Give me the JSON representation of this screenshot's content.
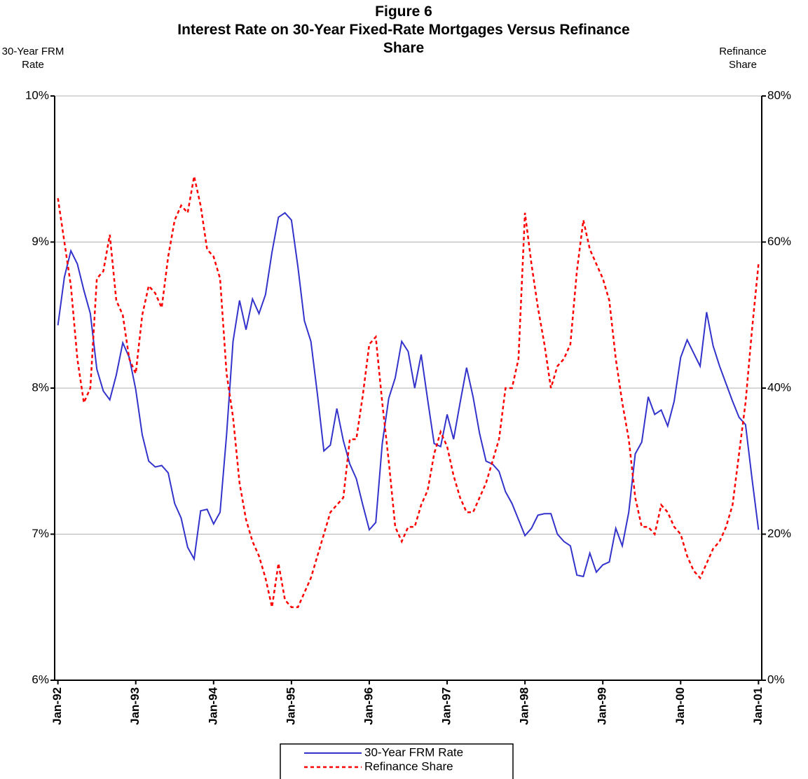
{
  "chart_data": {
    "type": "line",
    "title": "Figure 6",
    "subtitle": "Interest Rate on 30-Year Fixed-Rate Mortgages Versus Refinance Share",
    "ylabel": "30-Year FRM Rate",
    "y2label": "Refinance Share",
    "categories": [
      "Jan-92",
      null,
      null,
      null,
      null,
      null,
      null,
      null,
      null,
      null,
      null,
      null,
      "Jan-93",
      null,
      null,
      null,
      null,
      null,
      null,
      null,
      null,
      null,
      null,
      null,
      "Jan-94",
      null,
      null,
      null,
      null,
      null,
      null,
      null,
      null,
      null,
      null,
      null,
      "Jan-95",
      null,
      null,
      null,
      null,
      null,
      null,
      null,
      null,
      null,
      null,
      null,
      "Jan-96",
      null,
      null,
      null,
      null,
      null,
      null,
      null,
      null,
      null,
      null,
      null,
      "Jan-97",
      null,
      null,
      null,
      null,
      null,
      null,
      null,
      null,
      null,
      null,
      null,
      "Jan-98",
      null,
      null,
      null,
      null,
      null,
      null,
      null,
      null,
      null,
      null,
      null,
      "Jan-99",
      null,
      null,
      null,
      null,
      null,
      null,
      null,
      null,
      null,
      null,
      null,
      "Jan-00",
      null,
      null,
      null,
      null,
      null,
      null,
      null,
      null,
      null,
      null,
      null,
      "Jan-01"
    ],
    "series": [
      {
        "name": "30-Year FRM Rate",
        "color": "#3333cc",
        "dashed": false,
        "values": [
          8.43,
          8.76,
          8.94,
          8.85,
          8.67,
          8.51,
          8.13,
          7.98,
          7.92,
          8.09,
          8.31,
          8.21,
          7.99,
          7.68,
          7.5,
          7.46,
          7.47,
          7.42,
          7.21,
          7.11,
          6.91,
          6.83,
          7.16,
          7.17,
          7.07,
          7.15,
          7.68,
          8.32,
          8.6,
          8.4,
          8.61,
          8.51,
          8.64,
          8.93,
          9.17,
          9.2,
          9.15,
          8.83,
          8.46,
          8.32,
          7.96,
          7.57,
          7.61,
          7.86,
          7.64,
          7.48,
          7.38,
          7.2,
          7.03,
          7.08,
          7.62,
          7.93,
          8.07,
          8.32,
          8.25,
          8.0,
          8.23,
          7.92,
          7.62,
          7.6,
          7.82,
          7.65,
          7.9,
          8.14,
          7.94,
          7.69,
          7.5,
          7.48,
          7.43,
          7.29,
          7.21,
          7.1,
          6.99,
          7.04,
          7.13,
          7.14,
          7.14,
          7.0,
          6.95,
          6.92,
          6.72,
          6.71,
          6.87,
          6.74,
          6.79,
          6.81,
          7.04,
          6.92,
          7.15,
          7.55,
          7.63,
          7.94,
          7.82,
          7.85,
          7.74,
          7.91,
          8.21,
          8.33,
          8.24,
          8.15,
          8.52,
          8.29,
          8.15,
          8.03,
          7.91,
          7.8,
          7.75,
          7.38,
          7.03
        ]
      },
      {
        "name": "Refinance Share",
        "color": "#ff0000",
        "dashed": true,
        "axis": "y2",
        "values": [
          66,
          60,
          54,
          44,
          38,
          40,
          55,
          56,
          61,
          52,
          50,
          44,
          42,
          50,
          54,
          53,
          51,
          58,
          63,
          65,
          64,
          69,
          65,
          59,
          58,
          55,
          42,
          36,
          27,
          22,
          19,
          17,
          14,
          10,
          16,
          11,
          10,
          10,
          12,
          14,
          17,
          20,
          23,
          24,
          25,
          33,
          33,
          39,
          46,
          47,
          38,
          30,
          21,
          19,
          21,
          21,
          24,
          26,
          31,
          34,
          32,
          28,
          25,
          23,
          23,
          25,
          27,
          30,
          33,
          40,
          40,
          44,
          64,
          57,
          51,
          46,
          40,
          43,
          44,
          46,
          56,
          63,
          59,
          57,
          55,
          52,
          44,
          38,
          33,
          25,
          21,
          21,
          20,
          24,
          23,
          21,
          20,
          17,
          15,
          14,
          16,
          18,
          19,
          21,
          24,
          31,
          38,
          48,
          57
        ]
      }
    ],
    "ylim": [
      6,
      10
    ],
    "yticks": [
      {
        "value": 6,
        "label": "6%"
      },
      {
        "value": 7,
        "label": "7%"
      },
      {
        "value": 8,
        "label": "8%"
      },
      {
        "value": 9,
        "label": "9%"
      },
      {
        "value": 10,
        "label": "10%"
      }
    ],
    "y2lim": [
      0,
      80
    ],
    "y2ticks": [
      {
        "value": 0,
        "label": "0%"
      },
      {
        "value": 20,
        "label": "20%"
      },
      {
        "value": 40,
        "label": "40%"
      },
      {
        "value": 60,
        "label": "60%"
      },
      {
        "value": 80,
        "label": "80%"
      }
    ],
    "grid": true
  }
}
